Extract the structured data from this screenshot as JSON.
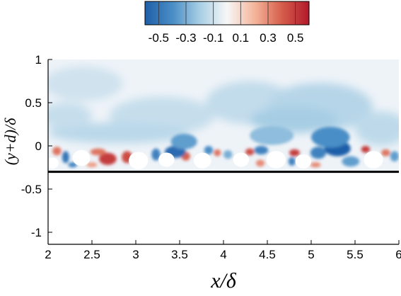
{
  "chart_data": {
    "type": "heatmap",
    "xlabel": "x/δ",
    "ylabel": "(y+d)/δ",
    "xlim": [
      2,
      6
    ],
    "ylim": [
      -1.2,
      1
    ],
    "xticks": [
      "2",
      "2.5",
      "3",
      "3.5",
      "4",
      "4.5",
      "5",
      "5.5",
      "6"
    ],
    "xtick_values": [
      2,
      2.5,
      3,
      3.5,
      4,
      4.5,
      5,
      5.5,
      6
    ],
    "yticks": [
      "1",
      "0.5",
      "0",
      "-0.5",
      "-1"
    ],
    "ytick_values": [
      1,
      0.5,
      0,
      -0.5,
      -1
    ],
    "colorbar": {
      "ticks": [
        "-0.5",
        "-0.3",
        "-0.1",
        "0.1",
        "0.3",
        "0.5"
      ],
      "tick_values": [
        -0.5,
        -0.3,
        -0.1,
        0.1,
        0.3,
        0.5
      ],
      "range": [
        -0.6,
        0.6
      ],
      "colormap": "blue-white-red",
      "colors": [
        "#2166ac",
        "#4393c3",
        "#92c5de",
        "#f7f7f7",
        "#f4a582",
        "#d6604d",
        "#b2182b"
      ]
    },
    "bed_line_y": -0.3,
    "field_top": 1,
    "particles": [
      {
        "x": 2.38,
        "y": -0.14,
        "r": 0.1
      },
      {
        "x": 3.03,
        "y": -0.17,
        "r": 0.11
      },
      {
        "x": 3.35,
        "y": -0.16,
        "r": 0.09
      },
      {
        "x": 3.76,
        "y": -0.17,
        "r": 0.1
      },
      {
        "x": 4.2,
        "y": -0.16,
        "r": 0.09
      },
      {
        "x": 4.6,
        "y": -0.16,
        "r": 0.11
      },
      {
        "x": 4.91,
        "y": -0.18,
        "r": 0.09
      },
      {
        "x": 5.71,
        "y": -0.16,
        "r": 0.11
      },
      {
        "x": 2.05,
        "y": -0.2,
        "r": 0.07
      }
    ],
    "blobs": [
      {
        "x": 2.68,
        "y": -0.15,
        "rx": 0.1,
        "ry": 0.07,
        "v": 0.5
      },
      {
        "x": 2.9,
        "y": -0.13,
        "rx": 0.06,
        "ry": 0.07,
        "v": 0.45
      },
      {
        "x": 2.57,
        "y": -0.07,
        "rx": 0.09,
        "ry": 0.04,
        "v": 0.35
      },
      {
        "x": 2.1,
        "y": -0.06,
        "rx": 0.05,
        "ry": 0.05,
        "v": 0.35
      },
      {
        "x": 2.5,
        "y": -0.22,
        "rx": 0.06,
        "ry": 0.03,
        "v": 0.25
      },
      {
        "x": 3.57,
        "y": -0.12,
        "rx": 0.05,
        "ry": 0.05,
        "v": 0.4
      },
      {
        "x": 3.93,
        "y": -0.08,
        "rx": 0.04,
        "ry": 0.04,
        "v": 0.35
      },
      {
        "x": 4.3,
        "y": -0.07,
        "rx": 0.05,
        "ry": 0.04,
        "v": 0.45
      },
      {
        "x": 4.42,
        "y": -0.2,
        "rx": 0.05,
        "ry": 0.04,
        "v": 0.3
      },
      {
        "x": 4.81,
        "y": -0.08,
        "rx": 0.06,
        "ry": 0.04,
        "v": 0.5
      },
      {
        "x": 5.05,
        "y": -0.22,
        "rx": 0.06,
        "ry": 0.03,
        "v": 0.3
      },
      {
        "x": 5.62,
        "y": -0.04,
        "rx": 0.05,
        "ry": 0.04,
        "v": 0.5
      },
      {
        "x": 5.85,
        "y": -0.08,
        "rx": 0.05,
        "ry": 0.04,
        "v": 0.35
      },
      {
        "x": 2.2,
        "y": -0.13,
        "rx": 0.04,
        "ry": 0.07,
        "v": -0.5
      },
      {
        "x": 2.28,
        "y": -0.22,
        "rx": 0.05,
        "ry": 0.03,
        "v": -0.45
      },
      {
        "x": 3.23,
        "y": -0.1,
        "rx": 0.05,
        "ry": 0.07,
        "v": -0.45
      },
      {
        "x": 3.45,
        "y": -0.07,
        "rx": 0.12,
        "ry": 0.07,
        "v": -0.55
      },
      {
        "x": 3.55,
        "y": 0.05,
        "rx": 0.15,
        "ry": 0.09,
        "v": -0.35
      },
      {
        "x": 3.83,
        "y": -0.05,
        "rx": 0.05,
        "ry": 0.05,
        "v": -0.4
      },
      {
        "x": 4.05,
        "y": -0.1,
        "rx": 0.05,
        "ry": 0.05,
        "v": -0.3
      },
      {
        "x": 4.43,
        "y": -0.05,
        "rx": 0.08,
        "ry": 0.05,
        "v": -0.45
      },
      {
        "x": 4.55,
        "y": 0.12,
        "rx": 0.25,
        "ry": 0.11,
        "v": -0.25
      },
      {
        "x": 4.78,
        "y": -0.18,
        "rx": 0.04,
        "ry": 0.05,
        "v": -0.45
      },
      {
        "x": 5.08,
        "y": -0.08,
        "rx": 0.09,
        "ry": 0.07,
        "v": -0.45
      },
      {
        "x": 5.3,
        "y": -0.03,
        "rx": 0.15,
        "ry": 0.09,
        "v": -0.6
      },
      {
        "x": 5.22,
        "y": 0.1,
        "rx": 0.22,
        "ry": 0.12,
        "v": -0.4
      },
      {
        "x": 5.45,
        "y": -0.18,
        "rx": 0.1,
        "ry": 0.06,
        "v": -0.35
      },
      {
        "x": 5.95,
        "y": -0.12,
        "rx": 0.05,
        "ry": 0.06,
        "v": -0.35
      }
    ],
    "background_washes": [
      {
        "x": 2.4,
        "y": 0.72,
        "rx": 0.45,
        "ry": 0.2,
        "v": -0.1
      },
      {
        "x": 3.3,
        "y": 0.35,
        "rx": 0.6,
        "ry": 0.22,
        "v": -0.12
      },
      {
        "x": 4.3,
        "y": 0.5,
        "rx": 0.5,
        "ry": 0.25,
        "v": -0.13
      },
      {
        "x": 5.1,
        "y": 0.45,
        "rx": 0.6,
        "ry": 0.28,
        "v": -0.16
      },
      {
        "x": 2.8,
        "y": 0.15,
        "rx": 0.8,
        "ry": 0.12,
        "v": -0.15
      },
      {
        "x": 4.8,
        "y": 0.3,
        "rx": 0.5,
        "ry": 0.15,
        "v": -0.2
      },
      {
        "x": 5.8,
        "y": 0.2,
        "rx": 0.3,
        "ry": 0.2,
        "v": -0.14
      },
      {
        "x": 2.2,
        "y": 0.35,
        "rx": 0.3,
        "ry": 0.15,
        "v": -0.12
      }
    ]
  }
}
